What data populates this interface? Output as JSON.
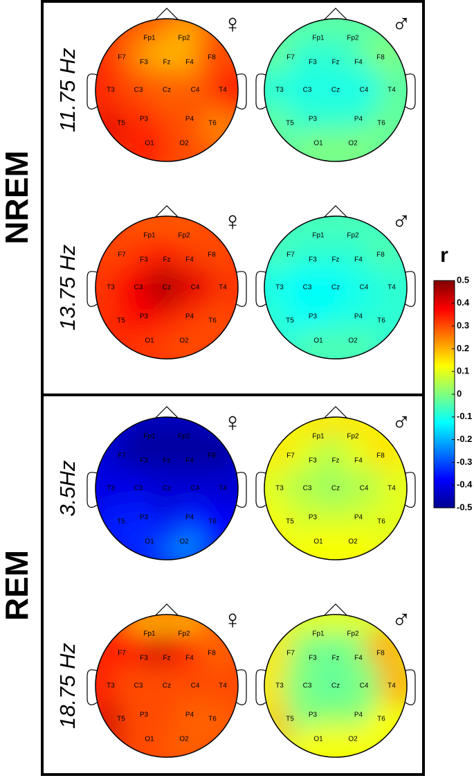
{
  "electrodes": [
    "Fp1",
    "Fp2",
    "F7",
    "F3",
    "Fz",
    "F4",
    "F8",
    "T3",
    "C3",
    "Cz",
    "C4",
    "T4",
    "T5",
    "P3",
    "P4",
    "T6",
    "O1",
    "O2"
  ],
  "sections": [
    {
      "label": "NREM",
      "rows": [
        {
          "frequency": "11.75 Hz",
          "maps": [
            {
              "sex": "♀",
              "values": [
                0.28,
                0.22,
                0.35,
                0.25,
                0.2,
                0.2,
                0.3,
                0.35,
                0.3,
                0.28,
                0.28,
                0.35,
                0.4,
                0.33,
                0.3,
                0.25,
                0.35,
                0.3
              ]
            },
            {
              "sex": "♂",
              "values": [
                -0.03,
                -0.03,
                -0.02,
                -0.08,
                -0.08,
                -0.06,
                0.0,
                -0.08,
                -0.1,
                -0.1,
                -0.1,
                -0.03,
                -0.02,
                -0.08,
                -0.08,
                -0.02,
                0.0,
                0.0
              ]
            }
          ]
        },
        {
          "frequency": "13.75 Hz",
          "maps": [
            {
              "sex": "♀",
              "values": [
                0.28,
                0.28,
                0.3,
                0.32,
                0.35,
                0.32,
                0.3,
                0.32,
                0.38,
                0.45,
                0.4,
                0.32,
                0.33,
                0.38,
                0.33,
                0.3,
                0.32,
                0.3
              ]
            },
            {
              "sex": "♂",
              "values": [
                -0.05,
                -0.05,
                -0.05,
                -0.08,
                -0.08,
                -0.08,
                -0.05,
                -0.1,
                -0.12,
                -0.12,
                -0.1,
                -0.08,
                -0.08,
                -0.12,
                -0.1,
                -0.08,
                -0.05,
                -0.05
              ]
            }
          ]
        }
      ]
    },
    {
      "label": "REM",
      "rows": [
        {
          "frequency": "3.5Hz",
          "maps": [
            {
              "sex": "♀",
              "values": [
                -0.45,
                -0.45,
                -0.42,
                -0.47,
                -0.47,
                -0.47,
                -0.47,
                -0.4,
                -0.4,
                -0.42,
                -0.42,
                -0.42,
                -0.35,
                -0.35,
                -0.35,
                -0.37,
                -0.33,
                -0.25
              ]
            },
            {
              "sex": "♂",
              "values": [
                0.15,
                0.15,
                0.15,
                0.1,
                0.05,
                0.1,
                0.15,
                0.1,
                0.05,
                0.03,
                0.05,
                0.1,
                0.12,
                0.08,
                0.08,
                0.1,
                0.12,
                0.12
              ]
            }
          ]
        },
        {
          "frequency": "18.75 Hz",
          "maps": [
            {
              "sex": "♀",
              "values": [
                0.2,
                0.2,
                0.35,
                0.35,
                0.42,
                0.35,
                0.28,
                0.35,
                0.3,
                0.3,
                0.3,
                0.3,
                0.42,
                0.3,
                0.28,
                0.28,
                0.3,
                0.28
              ]
            },
            {
              "sex": "♂",
              "values": [
                0.1,
                0.1,
                0.15,
                0.0,
                -0.02,
                0.0,
                0.2,
                0.15,
                0.0,
                -0.03,
                0.0,
                0.2,
                0.18,
                0.0,
                0.0,
                0.12,
                0.12,
                0.12
              ]
            }
          ]
        }
      ]
    }
  ],
  "colorbar": {
    "title": "r",
    "range": [
      -0.5,
      0.5
    ],
    "ticks": [
      0.5,
      0.4,
      0.3,
      0.2,
      0.1,
      0,
      -0.1,
      -0.2,
      -0.3,
      -0.4,
      -0.5
    ]
  }
}
